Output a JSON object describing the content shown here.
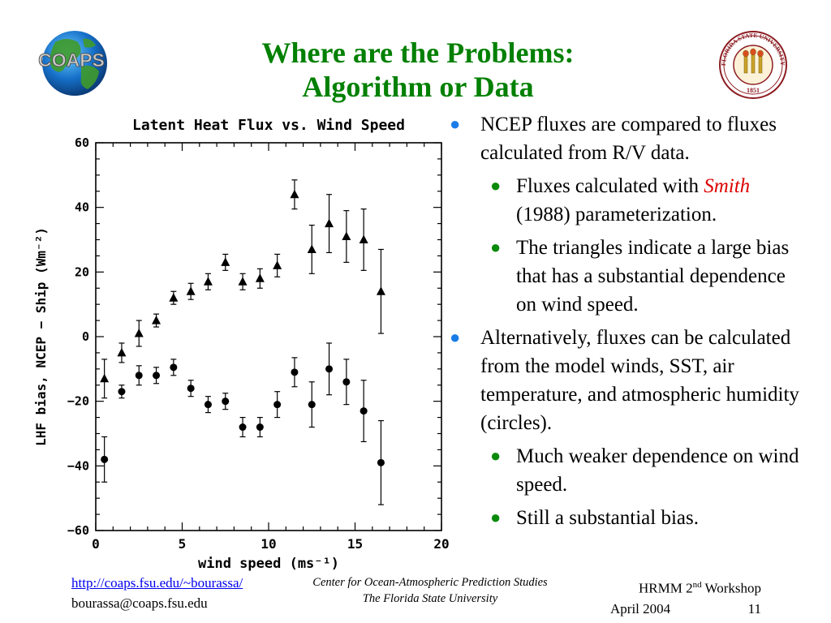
{
  "slide": {
    "title_line1": "Where are the Problems:",
    "title_line2": "Algorithm or Data"
  },
  "logos": {
    "left_text": "COAPS",
    "right_text_top": "FLORIDA STATE UNIVERSITY",
    "right_year": "1851"
  },
  "bullets": {
    "b1": "NCEP fluxes are compared to fluxes calculated from R/V data.",
    "b1a_pre": "Fluxes calculated with ",
    "b1a_em": "Smith",
    "b1a_post": " (1988) parameterization.",
    "b1b": "The triangles indicate a large bias that has a substantial dependence on wind speed.",
    "b2": "Alternatively, fluxes can be calculated from the model winds, SST, air temperature, and atmospheric humidity (circles).",
    "b2a": "Much weaker dependence on wind speed.",
    "b2b": "Still a substantial bias."
  },
  "footer": {
    "link": "http://coaps.fsu.edu/~bourassa/",
    "email": "bourassa@coaps.fsu.edu",
    "center1": "Center for Ocean-Atmospheric Prediction Studies",
    "center2": "The Florida State University",
    "workshop_pre": "HRMM 2",
    "workshop_sup": "nd",
    "workshop_post": " Workshop",
    "date": "April 2004",
    "page": "11"
  },
  "colors": {
    "title": "#008000",
    "bullet_level1": "#1a7de8",
    "bullet_level2": "#0a8a0a",
    "emphasis": "#dd0000",
    "link": "#0000ee"
  },
  "chart_data": {
    "type": "scatter",
    "title": "Latent Heat Flux vs. Wind Speed",
    "xlabel": "wind speed (ms⁻¹)",
    "ylabel": "LHF bias, NCEP − Ship (Wm⁻²)",
    "xlim": [
      0,
      20
    ],
    "ylim": [
      -60,
      60
    ],
    "xticks": [
      0,
      5,
      10,
      15,
      20
    ],
    "yticks": [
      -60,
      -40,
      -20,
      0,
      20,
      40,
      60
    ],
    "grid": false,
    "series": [
      {
        "marker": "triangle",
        "x": [
          0.5,
          1.5,
          2.5,
          3.5,
          4.5,
          5.5,
          6.5,
          7.5,
          8.5,
          9.5,
          10.5,
          11.5,
          12.5,
          13.5,
          14.5,
          15.5,
          16.5
        ],
        "y": [
          -13,
          -5,
          1,
          5,
          12,
          14,
          17,
          23,
          17,
          18,
          22,
          44,
          27,
          35,
          31,
          30,
          14
        ],
        "err": [
          6,
          3,
          4,
          2,
          2,
          2.5,
          2.5,
          2.5,
          2.5,
          3,
          3.5,
          4.5,
          7.5,
          9,
          8,
          9.5,
          13
        ]
      },
      {
        "marker": "circle",
        "x": [
          0.5,
          1.5,
          2.5,
          3.5,
          4.5,
          5.5,
          6.5,
          7.5,
          8.5,
          9.5,
          10.5,
          11.5,
          12.5,
          13.5,
          14.5,
          15.5,
          16.5
        ],
        "y": [
          -38,
          -17,
          -12,
          -12,
          -9.5,
          -16,
          -21,
          -20,
          -28,
          -28,
          -21,
          -11,
          -21,
          -10,
          -14,
          -23,
          -39
        ],
        "err": [
          7,
          2,
          3,
          2.5,
          2.5,
          2.5,
          2.5,
          2.5,
          3,
          3,
          4,
          4.5,
          7,
          8,
          7,
          9.5,
          13
        ]
      }
    ]
  }
}
